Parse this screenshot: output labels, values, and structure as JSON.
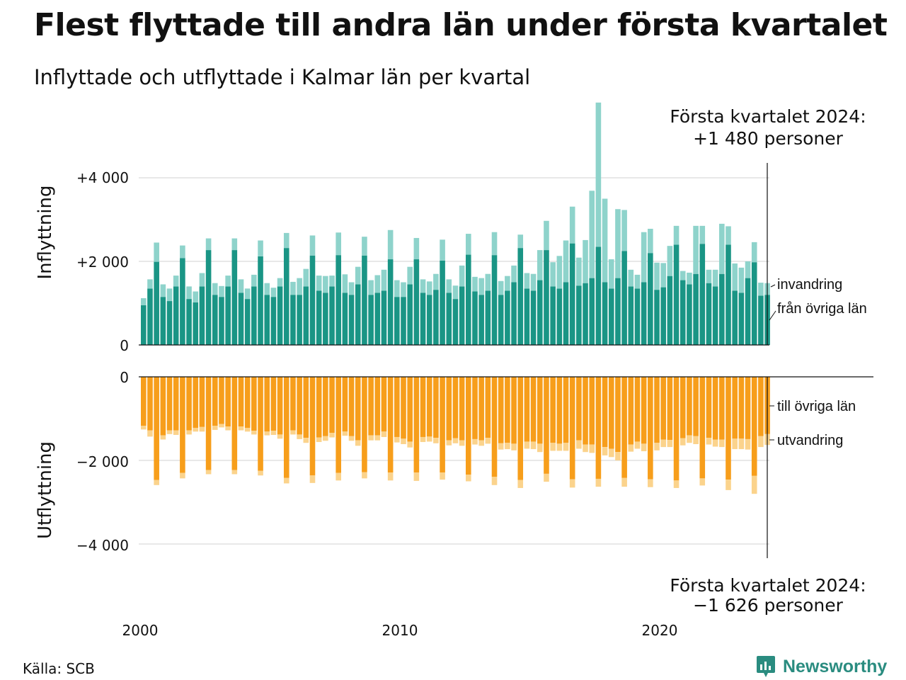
{
  "title": "Flest flyttade till andra län under första kvartalet",
  "subtitle": "Inflyttade och utflyttade i Kalmar län per kvartal",
  "source": "Källa: SCB",
  "logo_text": "Newsworthy",
  "colors": {
    "in_main": "#1a9585",
    "in_light": "#8ed3cb",
    "out_main": "#f79e1b",
    "out_light": "#fbd38c"
  },
  "chart_data": {
    "type": "bar",
    "stacked": true,
    "x_start": "2000 Q1",
    "x_ticks": [
      "2000",
      "2010",
      "2020"
    ],
    "top": {
      "ylabel": "Inflyttning",
      "yticks": [
        "+4 000",
        "+2 000",
        "0"
      ],
      "ylim": [
        0,
        4300
      ],
      "annotation_line1": "Första kvartalet 2024:",
      "annotation_line2": "+1 480 personer",
      "series": [
        {
          "name": "från övriga län",
          "values": [
            950,
            1350,
            1990,
            1150,
            1050,
            1400,
            2080,
            1100,
            1020,
            1400,
            2270,
            1200,
            1150,
            1400,
            2270,
            1250,
            1100,
            1400,
            2120,
            1200,
            1150,
            1400,
            2320,
            1200,
            1200,
            1400,
            2140,
            1300,
            1250,
            1400,
            2150,
            1250,
            1200,
            1450,
            2140,
            1200,
            1250,
            1300,
            2050,
            1150,
            1150,
            1450,
            2050,
            1250,
            1200,
            1320,
            2020,
            1250,
            1100,
            1400,
            2160,
            1280,
            1200,
            1300,
            2150,
            1200,
            1300,
            1500,
            2320,
            1350,
            1300,
            1550,
            2270,
            1400,
            1350,
            1500,
            2430,
            1420,
            1480,
            1600,
            2350,
            1500,
            1350,
            1600,
            2250,
            1400,
            1350,
            1500,
            2200,
            1320,
            1380,
            1650,
            2400,
            1550,
            1450,
            1700,
            2420,
            1480,
            1400,
            1700,
            2400,
            1300,
            1250,
            1600,
            1980,
            1180,
            1200
          ]
        },
        {
          "name": "invandring",
          "values": [
            170,
            220,
            460,
            300,
            300,
            260,
            300,
            300,
            260,
            320,
            280,
            280,
            260,
            260,
            280,
            320,
            250,
            280,
            380,
            280,
            220,
            200,
            360,
            310,
            400,
            420,
            480,
            360,
            400,
            260,
            540,
            440,
            300,
            420,
            450,
            350,
            420,
            500,
            700,
            400,
            350,
            420,
            510,
            320,
            320,
            380,
            500,
            320,
            320,
            500,
            500,
            350,
            400,
            400,
            550,
            330,
            350,
            400,
            320,
            370,
            400,
            720,
            700,
            580,
            780,
            1000,
            880,
            670,
            1030,
            2090,
            3450,
            2000,
            700,
            1650,
            980,
            400,
            330,
            1200,
            580,
            650,
            580,
            720,
            450,
            220,
            280,
            1150,
            430,
            320,
            400,
            1200,
            440,
            650,
            600,
            400,
            480,
            310,
            280
          ]
        }
      ],
      "legend": [
        "invandring",
        "från övriga län"
      ]
    },
    "bottom": {
      "ylabel": "Utflyttning",
      "yticks": [
        "0",
        "−2 000",
        "−4 000"
      ],
      "ylim": [
        -4300,
        0
      ],
      "annotation_line1": "Första kvartalet 2024:",
      "annotation_line2": "−1 626 personer",
      "series": [
        {
          "name": "till övriga län",
          "values": [
            -1170,
            -1280,
            -2470,
            -1400,
            -1280,
            -1280,
            -2300,
            -1280,
            -1220,
            -1200,
            -2230,
            -1170,
            -1130,
            -1190,
            -2230,
            -1190,
            -1220,
            -1290,
            -2250,
            -1310,
            -1290,
            -1380,
            -2420,
            -1280,
            -1380,
            -1460,
            -2360,
            -1450,
            -1420,
            -1340,
            -2300,
            -1310,
            -1420,
            -1520,
            -2280,
            -1400,
            -1400,
            -1310,
            -2290,
            -1440,
            -1480,
            -1550,
            -2290,
            -1440,
            -1430,
            -1460,
            -2290,
            -1520,
            -1470,
            -1520,
            -2340,
            -1490,
            -1520,
            -1460,
            -2390,
            -1590,
            -1580,
            -1600,
            -2470,
            -1550,
            -1550,
            -1600,
            -2320,
            -1580,
            -1600,
            -1580,
            -2450,
            -1520,
            -1620,
            -1620,
            -2440,
            -1680,
            -1720,
            -1800,
            -2420,
            -1620,
            -1550,
            -1600,
            -2450,
            -1580,
            -1500,
            -1510,
            -2480,
            -1470,
            -1400,
            -1420,
            -2430,
            -1460,
            -1500,
            -1500,
            -2460,
            -1480,
            -1480,
            -1490,
            -2370,
            -1420,
            -1370
          ]
        },
        {
          "name": "utvandring",
          "values": [
            -90,
            -150,
            -120,
            -100,
            -90,
            -110,
            -130,
            -100,
            -90,
            -110,
            -100,
            -100,
            -80,
            -90,
            -100,
            -90,
            -90,
            -90,
            -110,
            -90,
            -100,
            -100,
            -130,
            -100,
            -110,
            -120,
            -180,
            -110,
            -110,
            -110,
            -180,
            -100,
            -110,
            -130,
            -150,
            -120,
            -120,
            -130,
            -190,
            -130,
            -130,
            -140,
            -200,
            -120,
            -120,
            -130,
            -170,
            -120,
            -120,
            -130,
            -160,
            -130,
            -130,
            -140,
            -200,
            -150,
            -150,
            -160,
            -190,
            -170,
            -180,
            -200,
            -190,
            -190,
            -170,
            -190,
            -200,
            -200,
            -180,
            -200,
            -190,
            -200,
            -200,
            -200,
            -210,
            -170,
            -170,
            -180,
            -190,
            -180,
            -180,
            -170,
            -180,
            -170,
            -180,
            -190,
            -170,
            -160,
            -170,
            -180,
            -250,
            -250,
            -250,
            -250,
            -430,
            -260,
            -260
          ]
        }
      ],
      "legend": [
        "till övriga län",
        "utvandring"
      ]
    }
  }
}
